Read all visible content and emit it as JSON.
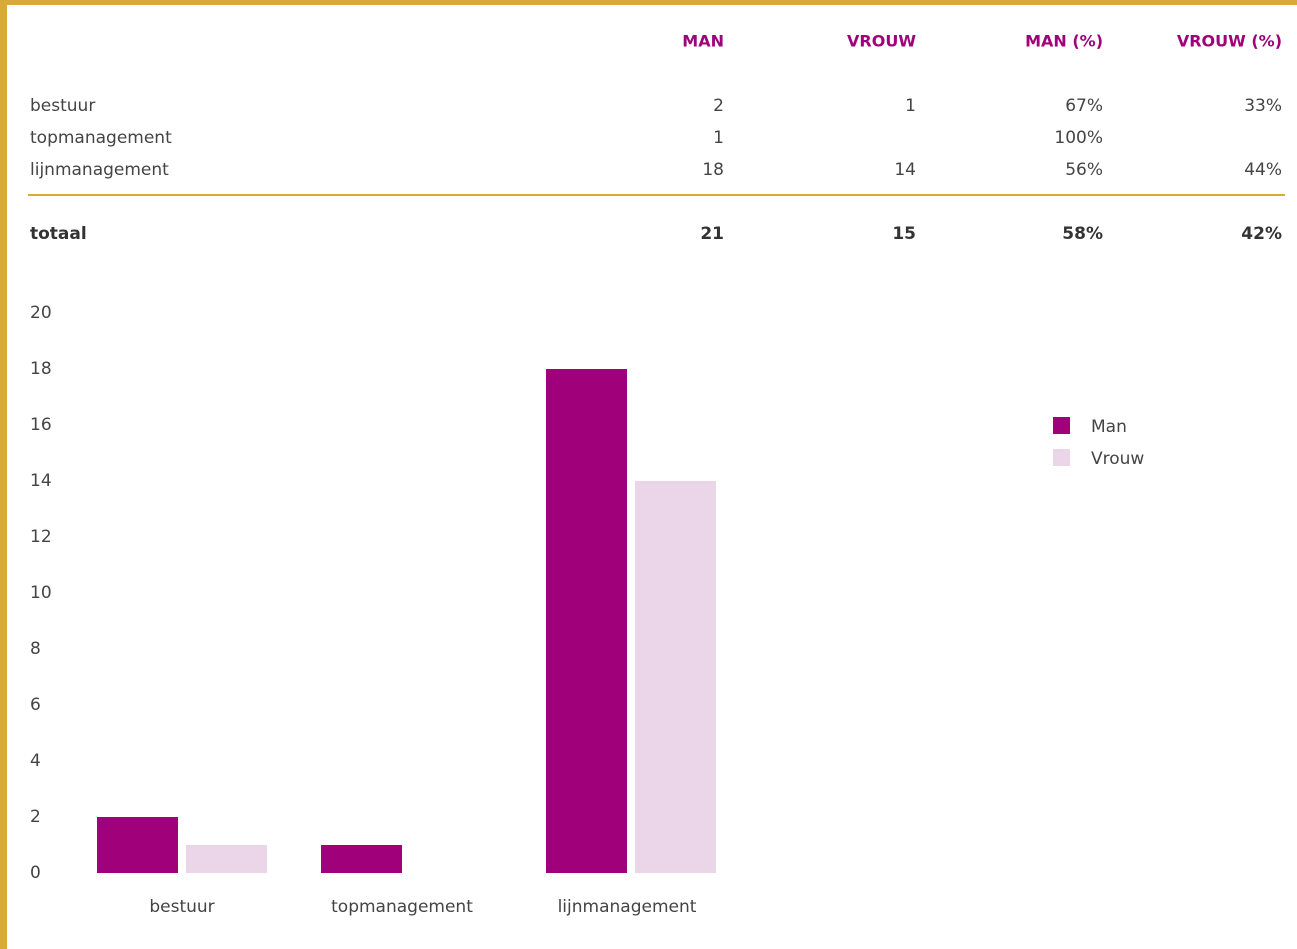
{
  "table": {
    "headers": [
      "MAN",
      "VROUW",
      "MAN (%)",
      "VROUW (%)"
    ],
    "rows": [
      {
        "label": "bestuur",
        "cells": [
          "2",
          "1",
          "67%",
          "33%"
        ]
      },
      {
        "label": "topmanagement",
        "cells": [
          "1",
          null,
          "100%",
          null
        ]
      },
      {
        "label": "lijnmanagement",
        "cells": [
          "18",
          "14",
          "56%",
          "44%"
        ]
      }
    ],
    "total": {
      "label": "totaal",
      "cells": [
        "21",
        "15",
        "58%",
        "42%"
      ]
    }
  },
  "chart_data": {
    "type": "bar",
    "categories": [
      "bestuur",
      "topmanagement",
      "lijnmanagement"
    ],
    "series": [
      {
        "name": "Man",
        "color": "#a0007a",
        "values": [
          2,
          1,
          18
        ]
      },
      {
        "name": "Vrouw",
        "color": "#ead6e8",
        "values": [
          1,
          null,
          14
        ]
      }
    ],
    "ylim": [
      0,
      20
    ],
    "yticks": [
      0,
      2,
      4,
      6,
      8,
      10,
      12,
      14,
      16,
      18,
      20
    ],
    "grid": false,
    "legend": "right"
  }
}
